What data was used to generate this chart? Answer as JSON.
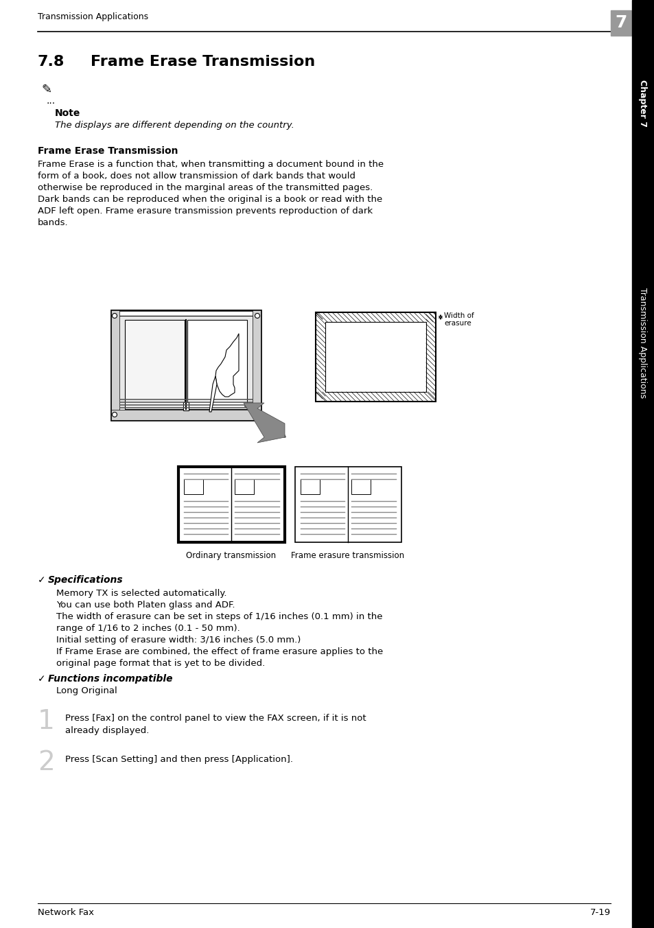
{
  "page_title": "Transmission Applications",
  "chapter_number": "7",
  "chapter_label": "Chapter 7",
  "side_label": "Transmission Applications",
  "section_number": "7.8",
  "section_title": "Frame Erase Transmission",
  "note_label": "Note",
  "note_text": "The displays are different depending on the country.",
  "subsection_title": "Frame Erase Transmission",
  "body_text": "Frame Erase is a function that, when transmitting a document bound in the\nform of a book, does not allow transmission of dark bands that would\notherwise be reproduced in the marginal areas of the transmitted pages.\nDark bands can be reproduced when the original is a book or read with the\nADF left open. Frame erasure transmission prevents reproduction of dark\nbands.",
  "caption_left": "Ordinary transmission",
  "caption_right": "Frame erasure transmission",
  "width_label1": "Width of",
  "width_label2": "erasure",
  "spec_label": "Specifications",
  "spec_lines": [
    "Memory TX is selected automatically.",
    "You can use both Platen glass and ADF.",
    "The width of erasure can be set in steps of 1/16 inches (0.1 mm) in the",
    "range of 1/16 to 2 inches (0.1 - 50 mm).",
    "Initial setting of erasure width: 3/16 inches (5.0 mm.)",
    "If Frame Erase are combined, the effect of frame erasure applies to the",
    "original page format that is yet to be divided."
  ],
  "func_label": "Functions incompatible",
  "func_text": "Long Original",
  "step1_num": "1",
  "step1_text": "Press [Fax] on the control panel to view the FAX screen, if it is not\nalready displayed.",
  "step2_num": "2",
  "step2_text": "Press [Scan Setting] and then press [Application].",
  "footer_left": "Network Fax",
  "footer_right": "7-19",
  "bg_color": "#ffffff",
  "text_color": "#000000"
}
